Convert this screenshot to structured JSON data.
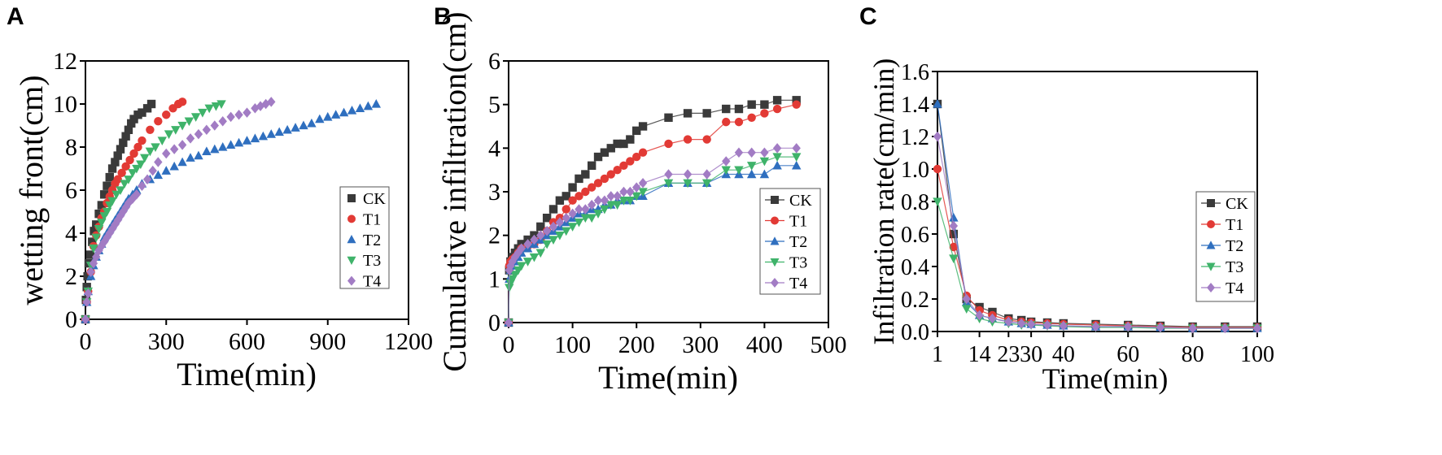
{
  "series_colors": {
    "CK": "#3a3a3a",
    "T1": "#e23a35",
    "T2": "#2f6fbf",
    "T3": "#3fb36a",
    "T4": "#a27cc4"
  },
  "chart_data": [
    {
      "panel": "A",
      "type": "scatter",
      "xlabel": "Time(min)",
      "ylabel": "wetting front(cm)",
      "xlim": [
        0,
        1200
      ],
      "ylim": [
        0,
        12
      ],
      "xticks": [
        0,
        300,
        600,
        900,
        1200
      ],
      "yticks": [
        0,
        2,
        4,
        6,
        8,
        10,
        12
      ],
      "legend_position": "right",
      "series": [
        {
          "name": "CK",
          "marker": "square",
          "x": [
            0,
            2,
            5,
            8,
            12,
            18,
            25,
            32,
            40,
            50,
            60,
            70,
            80,
            90,
            100,
            110,
            120,
            130,
            140,
            150,
            160,
            170,
            180,
            195,
            210,
            230,
            245
          ],
          "y": [
            0,
            0.9,
            1.5,
            2.0,
            2.6,
            3.0,
            3.6,
            4.1,
            4.4,
            4.9,
            5.3,
            5.8,
            6.2,
            6.6,
            7.0,
            7.3,
            7.6,
            7.9,
            8.2,
            8.5,
            8.8,
            9.1,
            9.3,
            9.5,
            9.6,
            9.8,
            10.0
          ]
        },
        {
          "name": "T1",
          "marker": "circle",
          "x": [
            0,
            5,
            10,
            20,
            30,
            40,
            50,
            60,
            70,
            80,
            90,
            100,
            110,
            120,
            135,
            150,
            165,
            180,
            195,
            210,
            240,
            270,
            300,
            325,
            345,
            360
          ],
          "y": [
            0,
            0.8,
            1.3,
            2.2,
            3.4,
            3.9,
            4.3,
            4.7,
            5.0,
            5.4,
            5.7,
            6.0,
            6.3,
            6.5,
            6.8,
            7.1,
            7.4,
            7.7,
            8.0,
            8.3,
            8.8,
            9.2,
            9.5,
            9.8,
            10.0,
            10.1
          ]
        },
        {
          "name": "T2",
          "marker": "triangle-up",
          "x": [
            0,
            5,
            10,
            20,
            30,
            40,
            50,
            60,
            70,
            80,
            90,
            100,
            110,
            120,
            130,
            140,
            150,
            160,
            175,
            190,
            210,
            240,
            270,
            300,
            330,
            360,
            390,
            420,
            450,
            480,
            510,
            540,
            570,
            600,
            630,
            660,
            690,
            720,
            750,
            780,
            810,
            840,
            870,
            900,
            930,
            960,
            990,
            1020,
            1050,
            1080
          ],
          "y": [
            0,
            0.8,
            1.3,
            2.0,
            2.5,
            2.9,
            3.2,
            3.5,
            3.8,
            4.0,
            4.2,
            4.4,
            4.6,
            4.8,
            5.0,
            5.2,
            5.4,
            5.6,
            5.8,
            6.0,
            6.3,
            6.5,
            6.7,
            6.9,
            7.1,
            7.3,
            7.5,
            7.6,
            7.8,
            7.9,
            8.0,
            8.1,
            8.2,
            8.3,
            8.4,
            8.5,
            8.6,
            8.7,
            8.8,
            8.9,
            9.0,
            9.1,
            9.3,
            9.4,
            9.5,
            9.6,
            9.7,
            9.8,
            9.9,
            10.0
          ]
        },
        {
          "name": "T3",
          "marker": "triangle-down",
          "x": [
            0,
            5,
            10,
            20,
            30,
            40,
            50,
            60,
            70,
            80,
            90,
            100,
            115,
            130,
            145,
            160,
            175,
            190,
            205,
            220,
            240,
            260,
            285,
            310,
            335,
            360,
            385,
            410,
            435,
            460,
            485,
            505
          ],
          "y": [
            0,
            0.8,
            1.3,
            2.5,
            3.3,
            3.8,
            4.2,
            4.5,
            4.8,
            5.0,
            5.3,
            5.5,
            5.8,
            6.0,
            6.3,
            6.5,
            6.8,
            7.0,
            7.2,
            7.5,
            7.8,
            8.0,
            8.3,
            8.6,
            8.8,
            9.0,
            9.2,
            9.4,
            9.6,
            9.8,
            9.9,
            10.0
          ]
        },
        {
          "name": "T4",
          "marker": "diamond",
          "x": [
            0,
            5,
            10,
            20,
            30,
            40,
            50,
            60,
            70,
            80,
            90,
            100,
            110,
            120,
            130,
            140,
            150,
            160,
            175,
            190,
            210,
            230,
            250,
            270,
            300,
            330,
            360,
            390,
            420,
            450,
            480,
            510,
            540,
            570,
            600,
            630,
            650,
            670,
            690
          ],
          "y": [
            0,
            0.8,
            1.2,
            2.2,
            2.6,
            2.9,
            3.2,
            3.4,
            3.6,
            3.8,
            4.0,
            4.2,
            4.4,
            4.6,
            4.8,
            5.0,
            5.2,
            5.4,
            5.6,
            5.8,
            6.2,
            6.5,
            6.9,
            7.3,
            7.7,
            7.9,
            8.1,
            8.4,
            8.6,
            8.8,
            9.0,
            9.2,
            9.4,
            9.5,
            9.6,
            9.8,
            9.9,
            10.0,
            10.1
          ]
        }
      ]
    },
    {
      "panel": "B",
      "type": "line",
      "xlabel": "Time(min)",
      "ylabel": "Cumulative infiltration(cm)",
      "xlim": [
        0,
        500
      ],
      "ylim": [
        0,
        6
      ],
      "xticks": [
        0,
        100,
        200,
        300,
        400,
        500
      ],
      "yticks": [
        0,
        1,
        2,
        3,
        4,
        5,
        6
      ],
      "legend_position": "right",
      "series": [
        {
          "name": "CK",
          "marker": "square",
          "x": [
            0,
            1,
            3,
            6,
            10,
            15,
            20,
            30,
            40,
            50,
            60,
            70,
            80,
            90,
            100,
            110,
            120,
            130,
            140,
            150,
            160,
            170,
            180,
            190,
            200,
            210,
            250,
            280,
            310,
            340,
            360,
            380,
            400,
            420,
            450
          ],
          "y": [
            0,
            1.2,
            1.4,
            1.5,
            1.6,
            1.7,
            1.8,
            1.9,
            2.0,
            2.2,
            2.4,
            2.6,
            2.8,
            2.9,
            3.1,
            3.3,
            3.4,
            3.6,
            3.8,
            3.9,
            4.0,
            4.1,
            4.1,
            4.2,
            4.4,
            4.5,
            4.7,
            4.8,
            4.8,
            4.9,
            4.9,
            5.0,
            5.0,
            5.1,
            5.1
          ]
        },
        {
          "name": "T1",
          "marker": "circle",
          "x": [
            0,
            1,
            3,
            6,
            10,
            15,
            20,
            30,
            40,
            50,
            60,
            70,
            80,
            90,
            100,
            110,
            120,
            130,
            140,
            150,
            160,
            170,
            180,
            190,
            200,
            210,
            250,
            280,
            310,
            340,
            360,
            380,
            400,
            420,
            450
          ],
          "y": [
            0,
            1.3,
            1.4,
            1.45,
            1.5,
            1.6,
            1.7,
            1.75,
            1.8,
            1.9,
            2.1,
            2.3,
            2.4,
            2.6,
            2.8,
            2.9,
            3.0,
            3.1,
            3.2,
            3.3,
            3.4,
            3.5,
            3.6,
            3.7,
            3.8,
            3.9,
            4.1,
            4.2,
            4.2,
            4.6,
            4.6,
            4.7,
            4.8,
            4.9,
            5.0
          ]
        },
        {
          "name": "T2",
          "marker": "triangle-up",
          "x": [
            0,
            1,
            3,
            6,
            10,
            15,
            20,
            30,
            40,
            50,
            60,
            70,
            80,
            90,
            100,
            110,
            120,
            130,
            140,
            150,
            160,
            170,
            180,
            190,
            200,
            210,
            250,
            280,
            310,
            340,
            360,
            380,
            400,
            420,
            450
          ],
          "y": [
            0,
            1.0,
            1.2,
            1.3,
            1.4,
            1.5,
            1.6,
            1.7,
            1.8,
            1.9,
            2.0,
            2.1,
            2.2,
            2.3,
            2.4,
            2.5,
            2.5,
            2.6,
            2.6,
            2.7,
            2.7,
            2.8,
            2.8,
            2.8,
            2.9,
            2.9,
            3.2,
            3.2,
            3.2,
            3.4,
            3.4,
            3.4,
            3.4,
            3.6,
            3.6
          ]
        },
        {
          "name": "T3",
          "marker": "triangle-down",
          "x": [
            0,
            1,
            3,
            6,
            10,
            15,
            20,
            30,
            40,
            50,
            60,
            70,
            80,
            90,
            100,
            110,
            120,
            130,
            140,
            150,
            160,
            170,
            180,
            190,
            200,
            210,
            250,
            280,
            310,
            340,
            360,
            380,
            400,
            420,
            450
          ],
          "y": [
            0,
            0.8,
            0.9,
            1.0,
            1.1,
            1.2,
            1.3,
            1.4,
            1.5,
            1.6,
            1.8,
            1.9,
            2.0,
            2.1,
            2.2,
            2.3,
            2.4,
            2.4,
            2.5,
            2.6,
            2.7,
            2.7,
            2.8,
            2.8,
            2.9,
            3.0,
            3.2,
            3.2,
            3.2,
            3.5,
            3.5,
            3.6,
            3.7,
            3.8,
            3.8
          ]
        },
        {
          "name": "T4",
          "marker": "diamond",
          "x": [
            0,
            1,
            3,
            6,
            10,
            15,
            20,
            30,
            40,
            50,
            60,
            70,
            80,
            90,
            100,
            110,
            120,
            130,
            140,
            150,
            160,
            170,
            180,
            190,
            200,
            210,
            250,
            280,
            310,
            340,
            360,
            380,
            400,
            420,
            450
          ],
          "y": [
            0,
            1.2,
            1.3,
            1.4,
            1.5,
            1.6,
            1.7,
            1.8,
            1.9,
            2.0,
            2.1,
            2.2,
            2.3,
            2.4,
            2.5,
            2.6,
            2.6,
            2.7,
            2.8,
            2.8,
            2.9,
            2.9,
            3.0,
            3.0,
            3.1,
            3.2,
            3.4,
            3.4,
            3.4,
            3.7,
            3.9,
            3.9,
            3.9,
            4.0,
            4.0
          ]
        }
      ]
    },
    {
      "panel": "C",
      "type": "line",
      "xlabel": "Time(min)",
      "ylabel": "Infiltration rate(cm/min)",
      "xlim": [
        1,
        100
      ],
      "ylim": [
        0,
        1.6
      ],
      "xticks": [
        1,
        14,
        23,
        30,
        40,
        60,
        80,
        100
      ],
      "xtick_labels": [
        "1",
        "14",
        "23",
        "30",
        "40",
        "60",
        "80",
        "100"
      ],
      "yticks": [
        0.0,
        0.2,
        0.4,
        0.6,
        0.8,
        1.0,
        1.2,
        1.4,
        1.6
      ],
      "ytick_labels": [
        "0.0",
        "0.2",
        "0.4",
        "0.6",
        "0.8",
        "1.0",
        "1.2",
        "1.4",
        "1.6"
      ],
      "legend_position": "right",
      "series": [
        {
          "name": "CK",
          "marker": "square",
          "x": [
            1,
            6,
            10,
            14,
            18,
            23,
            27,
            30,
            35,
            40,
            50,
            60,
            70,
            80,
            90,
            100
          ],
          "y": [
            1.4,
            0.6,
            0.2,
            0.15,
            0.12,
            0.08,
            0.07,
            0.06,
            0.055,
            0.05,
            0.045,
            0.04,
            0.035,
            0.03,
            0.03,
            0.03
          ]
        },
        {
          "name": "T1",
          "marker": "circle",
          "x": [
            1,
            6,
            10,
            14,
            18,
            23,
            27,
            30,
            35,
            40,
            50,
            60,
            70,
            80,
            90,
            100
          ],
          "y": [
            1.0,
            0.52,
            0.22,
            0.13,
            0.1,
            0.07,
            0.06,
            0.055,
            0.05,
            0.045,
            0.04,
            0.035,
            0.03,
            0.025,
            0.025,
            0.025
          ]
        },
        {
          "name": "T2",
          "marker": "triangle-up",
          "x": [
            1,
            6,
            10,
            14,
            18,
            23,
            27,
            30,
            35,
            40,
            50,
            60,
            70,
            80,
            90,
            100
          ],
          "y": [
            1.4,
            0.7,
            0.18,
            0.1,
            0.08,
            0.06,
            0.05,
            0.045,
            0.04,
            0.035,
            0.03,
            0.03,
            0.025,
            0.02,
            0.02,
            0.02
          ]
        },
        {
          "name": "T3",
          "marker": "triangle-down",
          "x": [
            1,
            6,
            10,
            14,
            18,
            23,
            27,
            30,
            35,
            40,
            50,
            60,
            70,
            80,
            90,
            100
          ],
          "y": [
            0.8,
            0.45,
            0.14,
            0.08,
            0.06,
            0.05,
            0.04,
            0.04,
            0.035,
            0.03,
            0.025,
            0.025,
            0.02,
            0.02,
            0.02,
            0.02
          ]
        },
        {
          "name": "T4",
          "marker": "diamond",
          "x": [
            1,
            6,
            10,
            14,
            18,
            23,
            27,
            30,
            35,
            40,
            50,
            60,
            70,
            80,
            90,
            100
          ],
          "y": [
            1.2,
            0.65,
            0.2,
            0.1,
            0.08,
            0.06,
            0.05,
            0.045,
            0.04,
            0.035,
            0.03,
            0.03,
            0.025,
            0.02,
            0.02,
            0.02
          ]
        }
      ]
    }
  ]
}
